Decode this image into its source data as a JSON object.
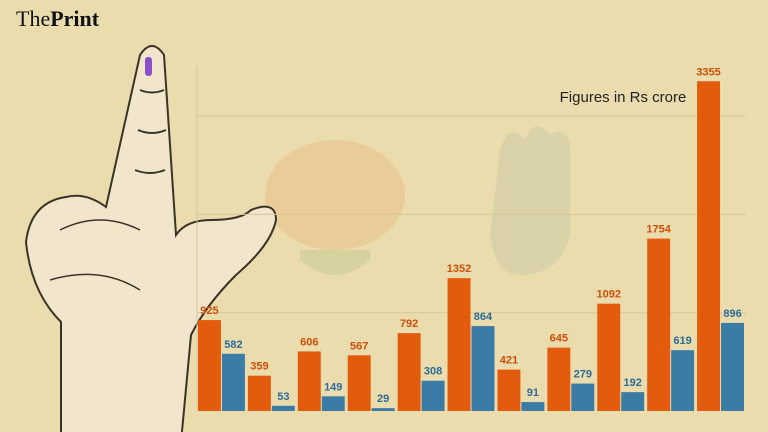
{
  "logo": {
    "part1": "The",
    "part2": "Print"
  },
  "chart_data": {
    "type": "bar",
    "annotation": "Figures in Rs crore",
    "categories": [
      null,
      null,
      null,
      null,
      null,
      null,
      null,
      null,
      null,
      null,
      null
    ],
    "series": [
      {
        "color": "#e35c0e",
        "label_color": "#cf4f08",
        "values": [
          925,
          359,
          606,
          567,
          792,
          1352,
          421,
          645,
          1092,
          1754,
          3355
        ]
      },
      {
        "color": "#3b7ca6",
        "label_color": "#2d6b98",
        "values": [
          582,
          53,
          149,
          29,
          308,
          864,
          91,
          279,
          192,
          619,
          896
        ]
      }
    ],
    "ylim": [
      0,
      3500
    ],
    "yticks": [
      1000,
      2000,
      3000
    ],
    "grid": true
  }
}
